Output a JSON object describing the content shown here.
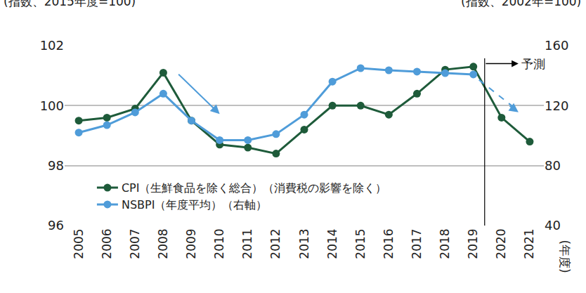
{
  "chart_data": {
    "type": "line",
    "y_title": "(指数、2015年度=100)",
    "y2_title": "(指数、2002年=100)",
    "x_title": "(年度)",
    "categories": [
      "2005",
      "2006",
      "2007",
      "2008",
      "2009",
      "2010",
      "2011",
      "2012",
      "2013",
      "2014",
      "2015",
      "2016",
      "2017",
      "2018",
      "2019",
      "2020",
      "2021"
    ],
    "series": [
      {
        "name": "CPI（生鮮食品を除く総合）（消費税の影響を除く）",
        "color": "#1e5b3a",
        "axis": "y",
        "marker": "circle",
        "line_style": "solid",
        "values": [
          99.5,
          99.6,
          99.9,
          101.1,
          99.5,
          98.7,
          98.6,
          98.4,
          99.2,
          100.0,
          100.0,
          99.7,
          100.4,
          101.2,
          101.3,
          99.6,
          98.8
        ]
      },
      {
        "name": "NSBPI（年度平均）（右軸）",
        "color": "#4f9cd9",
        "axis": "y2",
        "marker": "circle",
        "line_style": "solid",
        "values": [
          102,
          107,
          115.5,
          128,
          110,
          97,
          97,
          101,
          114,
          136,
          145,
          143.6,
          142.7,
          141.7,
          140.8,
          null,
          null
        ]
      }
    ],
    "ylim": [
      96,
      102
    ],
    "yticks": [
      96,
      98,
      100,
      102
    ],
    "y2lim": [
      40,
      160
    ],
    "y2ticks": [
      40,
      80,
      120,
      160
    ],
    "grid": true,
    "legend": "lower left",
    "annotations": [
      "予測"
    ]
  }
}
